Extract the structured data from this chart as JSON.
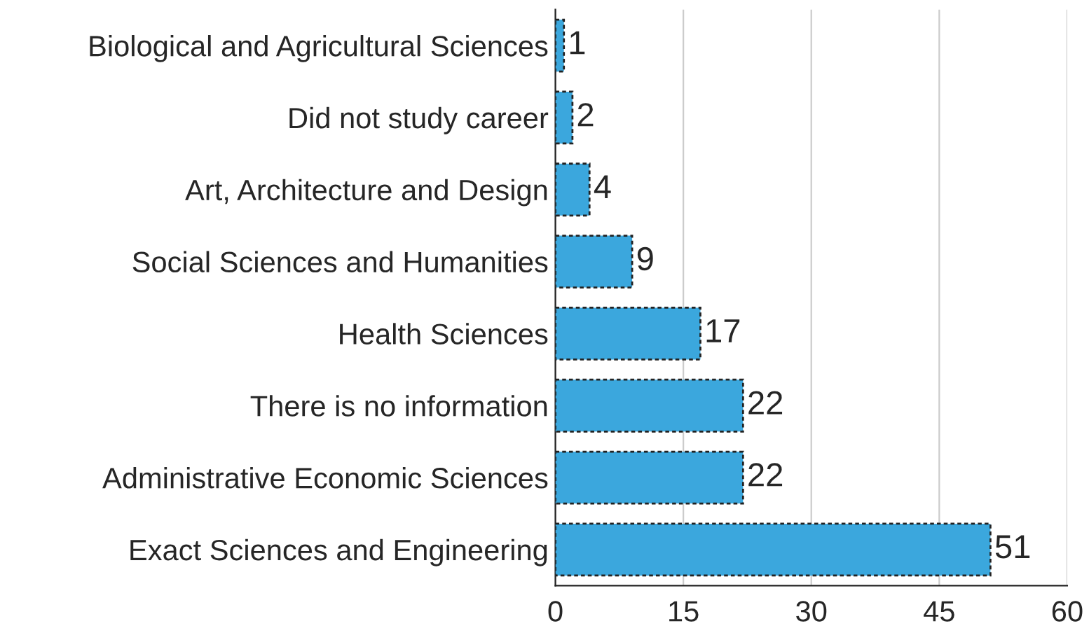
{
  "chart_data": {
    "type": "bar",
    "orientation": "horizontal",
    "categories": [
      "Biological and Agricultural Sciences",
      "Did not study career",
      "Art, Architecture and Design",
      "Social Sciences and Humanities",
      "Health Sciences",
      "There is no information",
      "Administrative Economic Sciences",
      "Exact Sciences and Engineering"
    ],
    "values": [
      1,
      2,
      4,
      9,
      17,
      22,
      22,
      51
    ],
    "color": "#3ba7dd",
    "xlim": [
      0,
      60
    ],
    "xticks": [
      0,
      15,
      30,
      45,
      60
    ],
    "grid": "x",
    "data_labels": true,
    "legend": false
  }
}
